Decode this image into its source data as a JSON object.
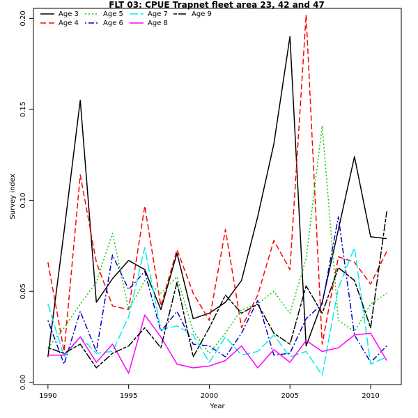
{
  "chart_data": {
    "type": "line",
    "title": "FLT 03: CPUE Trapnet fleet area 23, 42 and 47",
    "xlabel": "Year",
    "ylabel": "Survey index",
    "xlim": [
      1989.1,
      2011.9
    ],
    "ylim": [
      -0.0012,
      0.2055
    ],
    "x_ticks": [
      1990,
      1995,
      2000,
      2005,
      2010
    ],
    "y_ticks": [
      0.0,
      0.05,
      0.1,
      0.15,
      0.2
    ],
    "x_tick_labels": [
      "1990",
      "1995",
      "2000",
      "2005",
      "2010"
    ],
    "y_tick_labels": [
      "0.00",
      "0.05",
      "0.10",
      "0.15",
      "0.20"
    ],
    "grid": false,
    "legend_position": "top-left",
    "x": [
      1990,
      1991,
      1992,
      1993,
      1994,
      1995,
      1996,
      1997,
      1998,
      1999,
      2000,
      2001,
      2002,
      2003,
      2004,
      2005,
      2006,
      2007,
      2008,
      2009,
      2010,
      2011
    ],
    "series": [
      {
        "name": "Age 3",
        "color": "#000000",
        "dash": "solid",
        "values": [
          0.014,
          0.083,
          0.155,
          0.044,
          0.057,
          0.067,
          0.062,
          0.04,
          0.071,
          0.035,
          0.038,
          0.044,
          0.056,
          0.091,
          0.131,
          0.19,
          0.02,
          0.044,
          0.084,
          0.124,
          0.08,
          0.079
        ]
      },
      {
        "name": "Age 4",
        "color": "#ff0000",
        "dash": "dashed",
        "values": [
          0.066,
          0.017,
          0.114,
          0.066,
          0.042,
          0.04,
          0.097,
          0.042,
          0.073,
          0.049,
          0.034,
          0.084,
          0.03,
          0.048,
          0.078,
          0.062,
          0.202,
          0.021,
          0.069,
          0.066,
          0.054,
          0.072
        ]
      },
      {
        "name": "Age 5",
        "color": "#00cd00",
        "dash": "dotted",
        "values": [
          0.019,
          0.03,
          0.043,
          0.055,
          0.082,
          0.04,
          0.056,
          0.049,
          0.058,
          0.028,
          0.016,
          0.027,
          0.04,
          0.043,
          0.05,
          0.038,
          0.068,
          0.141,
          0.034,
          0.028,
          0.043,
          0.049
        ]
      },
      {
        "name": "Age 6",
        "color": "#0000cd",
        "dash": "dotdash",
        "values": [
          0.034,
          0.01,
          0.039,
          0.017,
          0.07,
          0.051,
          0.061,
          0.028,
          0.039,
          0.021,
          0.02,
          0.014,
          0.027,
          0.045,
          0.015,
          0.016,
          0.035,
          0.043,
          0.091,
          0.026,
          0.011,
          0.02
        ]
      },
      {
        "name": "Age 7",
        "color": "#00eeee",
        "dash": "longdash",
        "values": [
          0.043,
          0.014,
          0.025,
          0.016,
          0.017,
          0.036,
          0.074,
          0.029,
          0.031,
          0.026,
          0.011,
          0.025,
          0.015,
          0.017,
          0.026,
          0.014,
          0.017,
          0.004,
          0.052,
          0.074,
          0.01,
          0.014
        ]
      },
      {
        "name": "Age 8",
        "color": "#ff00ff",
        "dash": "solid",
        "values": [
          0.015,
          0.015,
          0.025,
          0.011,
          0.021,
          0.005,
          0.037,
          0.025,
          0.01,
          0.008,
          0.009,
          0.012,
          0.02,
          0.008,
          0.018,
          0.011,
          0.023,
          0.017,
          0.019,
          0.026,
          0.027,
          0.012
        ]
      },
      {
        "name": "Age 9",
        "color": "#000000",
        "dash": "twodash",
        "values": [
          0.019,
          0.016,
          0.021,
          0.008,
          0.016,
          0.02,
          0.03,
          0.019,
          0.055,
          0.014,
          0.03,
          0.048,
          0.038,
          0.043,
          0.027,
          0.021,
          0.053,
          0.038,
          0.063,
          0.056,
          0.03,
          0.094
        ]
      }
    ],
    "legend_layout": {
      "columns": [
        [
          "Age 3",
          "Age 4"
        ],
        [
          "Age 5",
          "Age 6"
        ],
        [
          "Age 7",
          "Age 8"
        ],
        [
          "Age 9"
        ]
      ]
    }
  }
}
